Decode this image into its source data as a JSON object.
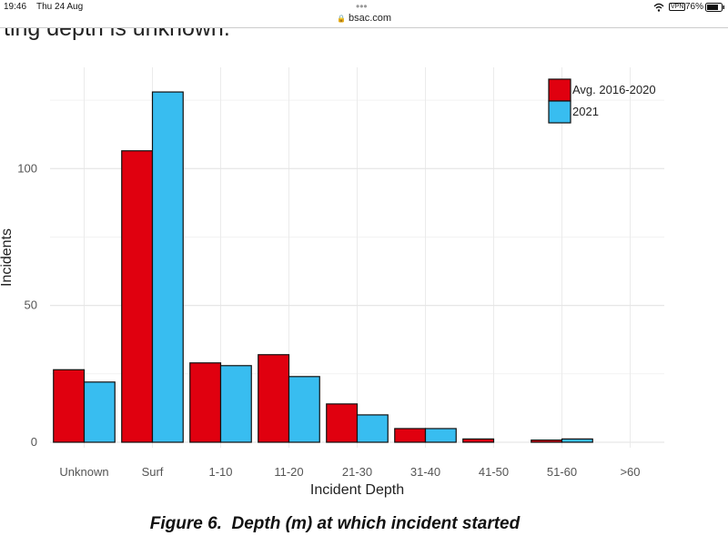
{
  "status_bar": {
    "time": "19:46",
    "date": "Thu 24 Aug",
    "vpn": "VPN",
    "battery": "76%"
  },
  "address_bar": {
    "url": "bsac.com"
  },
  "partial_text": "ting depth is unknown.",
  "chart_data": {
    "type": "bar",
    "categories": [
      "Unknown",
      "Surf",
      "1-10",
      "11-20",
      "21-30",
      "31-40",
      "41-50",
      "51-60",
      ">60"
    ],
    "series": [
      {
        "name": "Avg. 2016-2020",
        "color": "#e0000f",
        "values": [
          26.5,
          106.5,
          29,
          32,
          14,
          5,
          1.2,
          0.8,
          0
        ]
      },
      {
        "name": "2021",
        "color": "#38bdf0",
        "values": [
          22,
          128,
          28,
          24,
          10,
          5,
          0,
          1.2,
          0
        ]
      }
    ],
    "x_label": "Incident Depth",
    "y_label": "Incidents",
    "ylim": [
      -2,
      137
    ],
    "yticks": [
      0,
      50,
      100
    ],
    "minor_yticks": [
      25,
      75,
      125
    ],
    "grid": true,
    "legend": "top-right"
  },
  "caption": "Figure 6.  Depth (m) at which incident started"
}
